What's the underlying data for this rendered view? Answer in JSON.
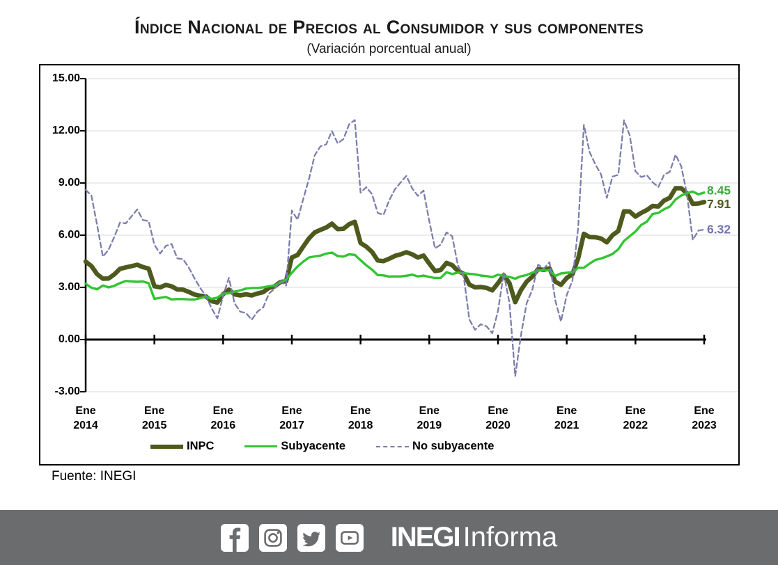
{
  "title": "Índice Nacional de Precios al Consumidor y sus componentes",
  "subtitle": "(Variación porcentual anual)",
  "source": "Fuente: INEGI",
  "footer": {
    "brand_bold": "INEGI",
    "brand_light": "Informa",
    "icons": [
      "facebook-icon",
      "instagram-icon",
      "twitter-icon",
      "youtube-icon"
    ],
    "bar_color": "#6b6c6e"
  },
  "chart_data": {
    "type": "line",
    "title": "Índice Nacional de Precios al Consumidor y sus componentes",
    "subtitle": "(Variación porcentual anual)",
    "x_unit": "monthly, Ene 2014 - Ene 2023",
    "ylim": [
      -3,
      15
    ],
    "grid": true,
    "legend_position": "bottom",
    "yticks": [
      {
        "value": 15,
        "label": "15.00"
      },
      {
        "value": 12,
        "label": "12.00"
      },
      {
        "value": 9,
        "label": "9.00"
      },
      {
        "value": 6,
        "label": "6.00"
      },
      {
        "value": 3,
        "label": "3.00"
      },
      {
        "value": 0,
        "label": "0.00"
      },
      {
        "value": -3,
        "label": "-3.00"
      }
    ],
    "xticks": [
      {
        "top": "Ene",
        "bottom": "2014"
      },
      {
        "top": "Ene",
        "bottom": "2015"
      },
      {
        "top": "Ene",
        "bottom": "2016"
      },
      {
        "top": "Ene",
        "bottom": "2017"
      },
      {
        "top": "Ene",
        "bottom": "2018"
      },
      {
        "top": "Ene",
        "bottom": "2019"
      },
      {
        "top": "Ene",
        "bottom": "2020"
      },
      {
        "top": "Ene",
        "bottom": "2021"
      },
      {
        "top": "Ene",
        "bottom": "2022"
      },
      {
        "top": "Ene",
        "bottom": "2023"
      }
    ],
    "series": [
      {
        "name": "INPC",
        "style": "thick",
        "color": "#4e5a1d",
        "values": [
          4.48,
          4.23,
          3.76,
          3.5,
          3.51,
          3.75,
          4.07,
          4.15,
          4.22,
          4.3,
          4.17,
          4.08,
          3.07,
          3.0,
          3.14,
          3.06,
          2.88,
          2.87,
          2.74,
          2.59,
          2.52,
          2.48,
          2.21,
          2.13,
          2.61,
          2.87,
          2.6,
          2.54,
          2.6,
          2.54,
          2.65,
          2.73,
          2.97,
          3.06,
          3.31,
          3.36,
          4.72,
          4.86,
          5.35,
          5.82,
          6.16,
          6.31,
          6.44,
          6.66,
          6.35,
          6.37,
          6.63,
          6.77,
          5.55,
          5.34,
          5.04,
          4.55,
          4.51,
          4.65,
          4.81,
          4.9,
          5.02,
          4.9,
          4.72,
          4.83,
          4.37,
          3.94,
          4.0,
          4.41,
          4.28,
          3.95,
          3.78,
          3.16,
          3.0,
          3.02,
          2.97,
          2.83,
          3.24,
          3.7,
          3.25,
          2.15,
          2.84,
          3.33,
          3.62,
          4.05,
          4.01,
          4.09,
          3.33,
          3.15,
          3.54,
          3.76,
          4.67,
          6.08,
          5.89,
          5.88,
          5.81,
          5.59,
          6.0,
          6.24,
          7.37,
          7.36,
          7.07,
          7.28,
          7.45,
          7.68,
          7.65,
          7.99,
          8.15,
          8.7,
          8.7,
          8.41,
          7.8,
          7.82,
          7.91
        ]
      },
      {
        "name": "Subyacente",
        "style": "solid",
        "color": "#33c433",
        "values": [
          3.21,
          2.98,
          2.89,
          3.11,
          3.0,
          3.09,
          3.25,
          3.37,
          3.34,
          3.32,
          3.34,
          3.24,
          2.34,
          2.4,
          2.45,
          2.31,
          2.33,
          2.33,
          2.31,
          2.3,
          2.38,
          2.47,
          2.34,
          2.41,
          2.64,
          2.66,
          2.76,
          2.83,
          2.93,
          2.97,
          2.97,
          3.0,
          3.07,
          3.1,
          3.29,
          3.44,
          3.84,
          4.2,
          4.48,
          4.72,
          4.78,
          4.83,
          4.94,
          5.0,
          4.8,
          4.77,
          4.9,
          4.87,
          4.56,
          4.27,
          4.02,
          3.71,
          3.69,
          3.62,
          3.63,
          3.63,
          3.67,
          3.73,
          3.63,
          3.68,
          3.6,
          3.54,
          3.55,
          3.87,
          3.77,
          3.85,
          3.82,
          3.78,
          3.75,
          3.68,
          3.65,
          3.59,
          3.73,
          3.66,
          3.6,
          3.5,
          3.64,
          3.71,
          3.85,
          3.97,
          3.99,
          3.98,
          3.66,
          3.8,
          3.84,
          3.87,
          4.12,
          4.13,
          4.37,
          4.58,
          4.66,
          4.78,
          4.92,
          5.19,
          5.67,
          5.94,
          6.21,
          6.59,
          6.78,
          7.22,
          7.28,
          7.49,
          7.65,
          8.05,
          8.28,
          8.42,
          8.51,
          8.35,
          8.45
        ]
      },
      {
        "name": "No subyacente",
        "style": "dashed",
        "color": "#7d7dad",
        "values": [
          8.61,
          8.28,
          6.59,
          4.77,
          5.17,
          5.9,
          6.73,
          6.68,
          7.08,
          7.48,
          6.87,
          6.81,
          5.44,
          4.95,
          5.38,
          5.5,
          4.67,
          4.62,
          4.14,
          3.53,
          2.97,
          2.51,
          1.79,
          1.22,
          2.51,
          3.55,
          2.08,
          1.6,
          1.53,
          1.14,
          1.61,
          1.85,
          2.64,
          2.93,
          3.37,
          3.1,
          7.42,
          6.89,
          8.08,
          9.25,
          10.6,
          11.11,
          11.22,
          11.98,
          11.28,
          11.52,
          12.37,
          12.62,
          8.44,
          8.76,
          8.36,
          7.28,
          7.17,
          8.0,
          8.64,
          9.03,
          9.41,
          8.7,
          8.26,
          8.57,
          6.81,
          5.24,
          5.46,
          6.16,
          5.94,
          4.27,
          3.65,
          1.15,
          0.56,
          0.88,
          0.76,
          0.36,
          1.65,
          3.83,
          2.11,
          -2.1,
          0.24,
          2.09,
          2.87,
          4.31,
          4.08,
          4.45,
          2.26,
          1.04,
          2.56,
          3.4,
          6.45,
          12.34,
          10.77,
          10.07,
          9.49,
          8.14,
          9.37,
          9.47,
          12.61,
          11.74,
          9.68,
          9.34,
          9.45,
          9.04,
          8.77,
          9.47,
          9.65,
          10.63,
          9.96,
          8.36,
          5.73,
          6.27,
          6.32
        ]
      }
    ],
    "end_labels": [
      {
        "text": "8.45",
        "value": 8.45,
        "color": "#3aa83a"
      },
      {
        "text": "7.91",
        "value": 7.91,
        "color": "#4e5a1d"
      },
      {
        "text": "6.32",
        "value": 6.32,
        "color": "#7272b0"
      }
    ],
    "legend": [
      {
        "label": "INPC",
        "style": "thick",
        "color": "#4e5a1d"
      },
      {
        "label": "Subyacente",
        "style": "solid",
        "color": "#33c433"
      },
      {
        "label": "No subyacente",
        "style": "dashed",
        "color": "#7d7dad"
      }
    ],
    "grid_color": "#d9d9d9",
    "axis_color": "#000000"
  }
}
